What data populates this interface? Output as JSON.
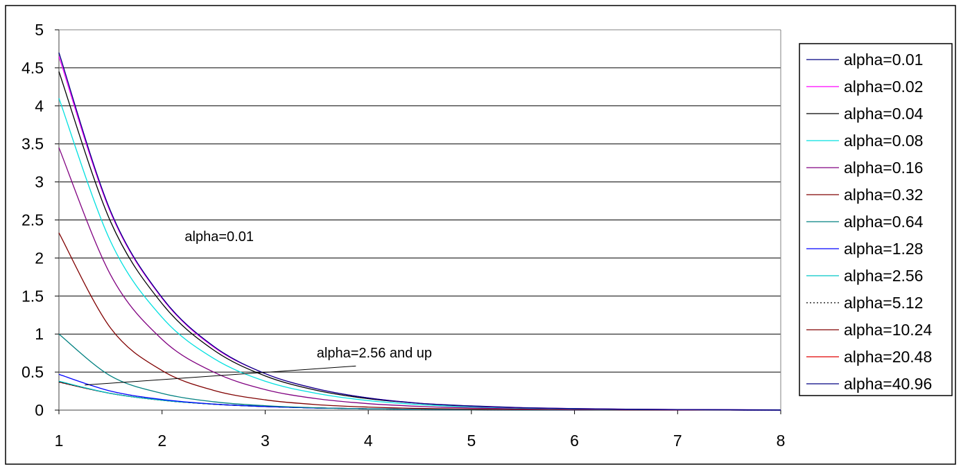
{
  "chart_data": {
    "type": "line",
    "title": "",
    "xlabel": "",
    "ylabel": "",
    "xlim": [
      1,
      8
    ],
    "ylim": [
      0,
      5
    ],
    "x_ticks": [
      "1",
      "2",
      "3",
      "4",
      "5",
      "6",
      "7",
      "8"
    ],
    "y_ticks": [
      "0",
      "0.5",
      "1",
      "1.5",
      "2",
      "2.5",
      "3",
      "3.5",
      "4",
      "4.5",
      "5"
    ],
    "grid": "horizontal",
    "legend_position": "right",
    "x": [
      1,
      1.5,
      2,
      2.5,
      3,
      3.5,
      4,
      4.5,
      5,
      5.5,
      6,
      6.5,
      7,
      7.5,
      8
    ],
    "series": [
      {
        "name": "alpha=0.01",
        "color": "#000080",
        "dash": "solid",
        "values": [
          4.7,
          2.62,
          1.48,
          0.84,
          0.48,
          0.28,
          0.16,
          0.09,
          0.055,
          0.032,
          0.02,
          0.012,
          0.008,
          0.005,
          0.003
        ]
      },
      {
        "name": "alpha=0.02",
        "color": "#ff00ff",
        "dash": "solid",
        "values": [
          4.65,
          2.6,
          1.47,
          0.83,
          0.48,
          0.28,
          0.16,
          0.09,
          0.054,
          0.032,
          0.02,
          0.012,
          0.008,
          0.005,
          0.003
        ]
      },
      {
        "name": "alpha=0.04",
        "color": "#000000",
        "dash": "solid",
        "values": [
          4.45,
          2.48,
          1.4,
          0.79,
          0.45,
          0.26,
          0.15,
          0.088,
          0.051,
          0.03,
          0.018,
          0.011,
          0.007,
          0.004,
          0.003
        ]
      },
      {
        "name": "alpha=0.08",
        "color": "#00e0e0",
        "dash": "solid",
        "values": [
          4.1,
          2.22,
          1.22,
          0.68,
          0.38,
          0.22,
          0.125,
          0.072,
          0.042,
          0.025,
          0.015,
          0.009,
          0.006,
          0.004,
          0.002
        ]
      },
      {
        "name": "alpha=0.16",
        "color": "#800080",
        "dash": "solid",
        "values": [
          3.45,
          1.78,
          0.93,
          0.5,
          0.27,
          0.15,
          0.085,
          0.049,
          0.028,
          0.017,
          0.01,
          0.006,
          0.004,
          0.002,
          0.001
        ]
      },
      {
        "name": "alpha=0.32",
        "color": "#800000",
        "dash": "solid",
        "values": [
          2.33,
          1.08,
          0.52,
          0.26,
          0.135,
          0.072,
          0.04,
          0.022,
          0.013,
          0.008,
          0.005,
          0.003,
          0.002,
          0.001,
          0.001
        ]
      },
      {
        "name": "alpha=0.64",
        "color": "#008080",
        "dash": "solid",
        "values": [
          1.0,
          0.45,
          0.22,
          0.11,
          0.058,
          0.031,
          0.017,
          0.01,
          0.006,
          0.003,
          0.002,
          0.001,
          0.001,
          0.001,
          0
        ]
      },
      {
        "name": "alpha=1.28",
        "color": "#0000ff",
        "dash": "solid",
        "values": [
          0.47,
          0.25,
          0.14,
          0.08,
          0.047,
          0.028,
          0.017,
          0.01,
          0.006,
          0.004,
          0.002,
          0.001,
          0.001,
          0.001,
          0
        ]
      },
      {
        "name": "alpha=2.56",
        "color": "#00c8c8",
        "dash": "solid",
        "values": [
          0.38,
          0.22,
          0.13,
          0.078,
          0.047,
          0.028,
          0.017,
          0.01,
          0.006,
          0.004,
          0.002,
          0.001,
          0.001,
          0.001,
          0
        ]
      },
      {
        "name": "alpha=5.12",
        "color": "#000000",
        "dash": "dotted",
        "values": [
          0.37,
          0.22,
          0.13,
          0.078,
          0.047,
          0.028,
          0.017,
          0.01,
          0.006,
          0.004,
          0.002,
          0.001,
          0.001,
          0.001,
          0
        ]
      },
      {
        "name": "alpha=10.24",
        "color": "#800000",
        "dash": "solid",
        "values": [
          0.37,
          0.22,
          0.13,
          0.078,
          0.047,
          0.028,
          0.017,
          0.01,
          0.006,
          0.004,
          0.002,
          0.001,
          0.001,
          0.001,
          0
        ]
      },
      {
        "name": "alpha=20.48",
        "color": "#e00000",
        "dash": "solid",
        "values": [
          0.37,
          0.22,
          0.13,
          0.078,
          0.047,
          0.028,
          0.017,
          0.01,
          0.006,
          0.004,
          0.002,
          0.001,
          0.001,
          0.001,
          0
        ]
      },
      {
        "name": "alpha=40.96",
        "color": "#000080",
        "dash": "solid",
        "values": [
          0.37,
          0.22,
          0.13,
          0.078,
          0.047,
          0.028,
          0.017,
          0.01,
          0.006,
          0.004,
          0.002,
          0.001,
          0.001,
          0.001,
          0
        ]
      }
    ],
    "annotations": [
      {
        "text": "alpha=0.01",
        "x": 2.22,
        "y": 2.22,
        "target": null
      },
      {
        "text": "alpha=2.56 and up",
        "x": 3.5,
        "y": 0.69,
        "target": {
          "from": [
            3.88,
            0.58
          ],
          "to": [
            1.25,
            0.33
          ]
        }
      }
    ]
  }
}
